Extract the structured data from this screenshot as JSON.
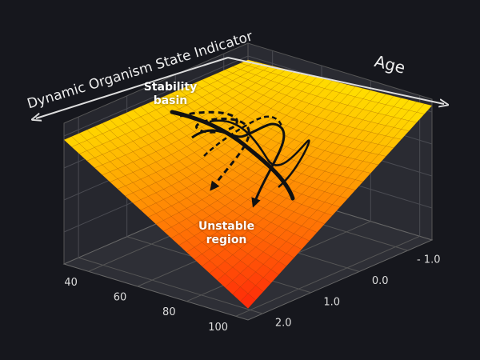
{
  "chart_data": {
    "type": "surface",
    "x_label": "Age",
    "y_label": "Dynamic Organism State Indicator",
    "xlim": [
      30,
      105
    ],
    "xticks": [
      40,
      60,
      80,
      100
    ],
    "ylim": [
      -1.5,
      2.3
    ],
    "yticks": [
      {
        "value": -1.0,
        "label": "- 1.0"
      },
      {
        "value": 0.0,
        "label": "0.0"
      },
      {
        "value": 1.0,
        "label": "1.0"
      },
      {
        "value": 2.0,
        "label": "2.0"
      }
    ],
    "annotations": [
      "Stability basin",
      "Unstable region"
    ],
    "grid": true
  }
}
